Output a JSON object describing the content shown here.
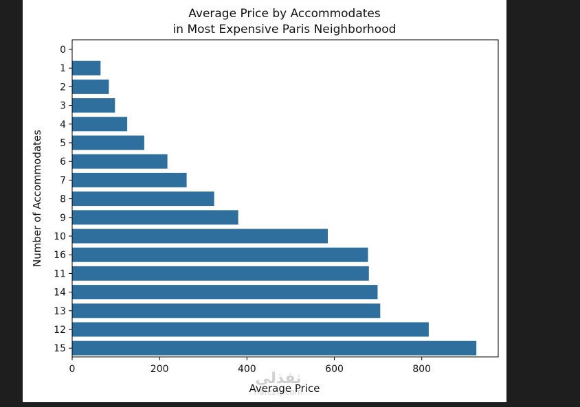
{
  "chart_data": {
    "type": "bar",
    "orientation": "horizontal",
    "title": [
      "Average Price by Accommodates",
      "in Most Expensive Paris Neighborhood"
    ],
    "xlabel": "Average Price",
    "ylabel": "Number of Accommodates",
    "categories": [
      "0",
      "1",
      "2",
      "3",
      "4",
      "5",
      "6",
      "7",
      "8",
      "9",
      "10",
      "16",
      "11",
      "14",
      "13",
      "12",
      "15"
    ],
    "values": [
      0,
      65,
      84,
      98,
      126,
      165,
      218,
      262,
      325,
      380,
      585,
      677,
      679,
      699,
      705,
      816,
      925
    ],
    "xlim": [
      0,
      975
    ],
    "xticks": [
      0,
      200,
      400,
      600,
      800
    ],
    "grid": false,
    "bar_color": "#2e6f9e"
  },
  "watermark": {
    "main": "نفذلي",
    "sub": "nafezly.com"
  }
}
